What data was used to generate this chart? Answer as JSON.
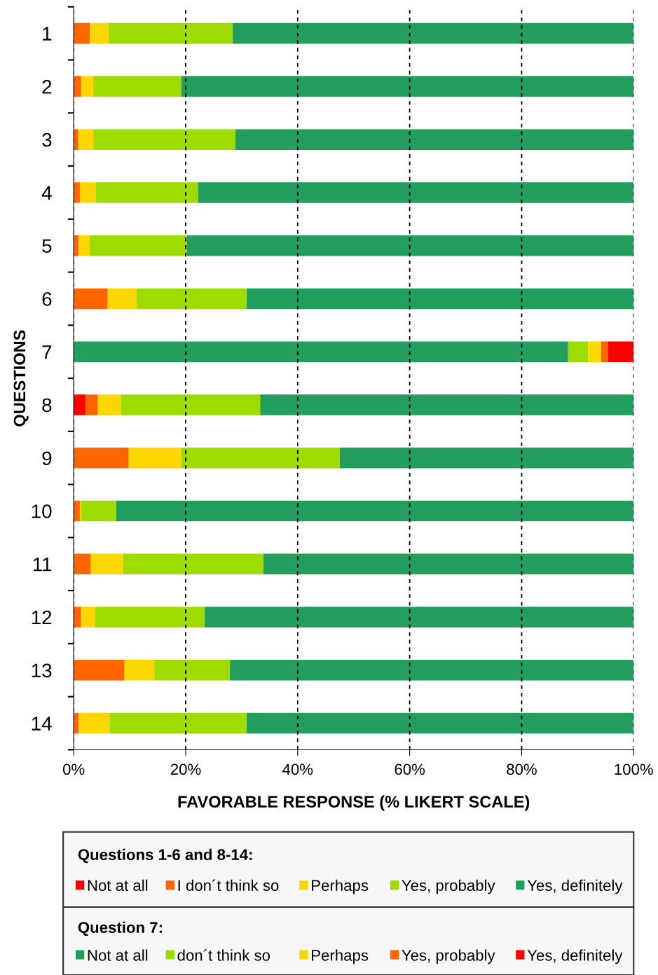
{
  "chart_data": {
    "type": "bar",
    "orientation": "horizontal",
    "stacked": true,
    "categories": [
      "1",
      "2",
      "3",
      "4",
      "5",
      "6",
      "7",
      "8",
      "9",
      "10",
      "11",
      "12",
      "13",
      "14"
    ],
    "series": [
      {
        "name": "Not at all",
        "color": "#ff0000",
        "colors": [
          "#ff0000",
          "#ff0000",
          "#ff0000",
          "#ff0000",
          "#ff0000",
          "#ff0000",
          "#229e5f",
          "#ff0000",
          "#ff0000",
          "#ff0000",
          "#ff0000",
          "#ff0000",
          "#ff0000",
          "#ff0000"
        ],
        "values": [
          0,
          0,
          0,
          0,
          0,
          0,
          88.3,
          2.1,
          0,
          0,
          0,
          0,
          0,
          0
        ]
      },
      {
        "name": "I don´t think so",
        "color": "#ff6600",
        "colors": [
          "#ff6600",
          "#ff6600",
          "#ff6600",
          "#ff6600",
          "#ff6600",
          "#ff6600",
          "#9edc00",
          "#ff6600",
          "#ff6600",
          "#ff6600",
          "#ff6600",
          "#ff6600",
          "#ff6600",
          "#ff6600"
        ],
        "values": [
          2.9,
          1.3,
          0.8,
          1.1,
          0.9,
          6.0,
          3.6,
          2.2,
          9.8,
          1.1,
          3.0,
          1.3,
          9.0,
          0.9
        ]
      },
      {
        "name": "Perhaps",
        "color": "#ffd700",
        "colors": [
          "#ffd700",
          "#ffd700",
          "#ffd700",
          "#ffd700",
          "#ffd700",
          "#ffd700",
          "#ffd700",
          "#ffd700",
          "#ffd700",
          "#ffd700",
          "#ffd700",
          "#ffd700",
          "#ffd700",
          "#ffd700"
        ],
        "values": [
          3.3,
          2.2,
          2.7,
          2.8,
          1.9,
          5.2,
          2.3,
          4.1,
          9.4,
          0.2,
          5.8,
          2.5,
          5.4,
          5.5
        ]
      },
      {
        "name": "Yes, probably",
        "color": "#9edc00",
        "colors": [
          "#9edc00",
          "#9edc00",
          "#9edc00",
          "#9edc00",
          "#9edc00",
          "#9edc00",
          "#ff6600",
          "#9edc00",
          "#9edc00",
          "#9edc00",
          "#9edc00",
          "#9edc00",
          "#9edc00",
          "#9edc00"
        ],
        "values": [
          22.2,
          15.7,
          25.4,
          18.3,
          17.4,
          19.7,
          1.2,
          24.9,
          28.3,
          6.3,
          25.1,
          19.6,
          13.5,
          24.5
        ]
      },
      {
        "name": "Yes, definitely",
        "color": "#229e5f",
        "colors": [
          "#229e5f",
          "#229e5f",
          "#229e5f",
          "#229e5f",
          "#229e5f",
          "#229e5f",
          "#ff0000",
          "#229e5f",
          "#229e5f",
          "#229e5f",
          "#229e5f",
          "#229e5f",
          "#229e5f",
          "#229e5f"
        ],
        "values": [
          71.6,
          80.8,
          71.1,
          77.8,
          79.8,
          69.1,
          4.6,
          66.7,
          52.5,
          92.4,
          66.1,
          76.6,
          72.1,
          69.1
        ]
      }
    ],
    "xlim": [
      0,
      100
    ],
    "xticks": [
      {
        "value": 0,
        "label": "0%"
      },
      {
        "value": 20,
        "label": "20%"
      },
      {
        "value": 40,
        "label": "40%"
      },
      {
        "value": 60,
        "label": "60%"
      },
      {
        "value": 80,
        "label": "80%"
      },
      {
        "value": 100,
        "label": "100%"
      }
    ],
    "xlabel": "FAVORABLE RESPONSE (% LIKERT SCALE)",
    "ylabel": "QUESTIONS",
    "grid": "x",
    "legend": "bottom",
    "legend_title": "Questions 1-6 and 8-14:",
    "annotations": [
      "Question 7:",
      "Not at all",
      "don´t think so",
      "Perhaps",
      "Yes, probably",
      "Yes, definitely"
    ]
  }
}
